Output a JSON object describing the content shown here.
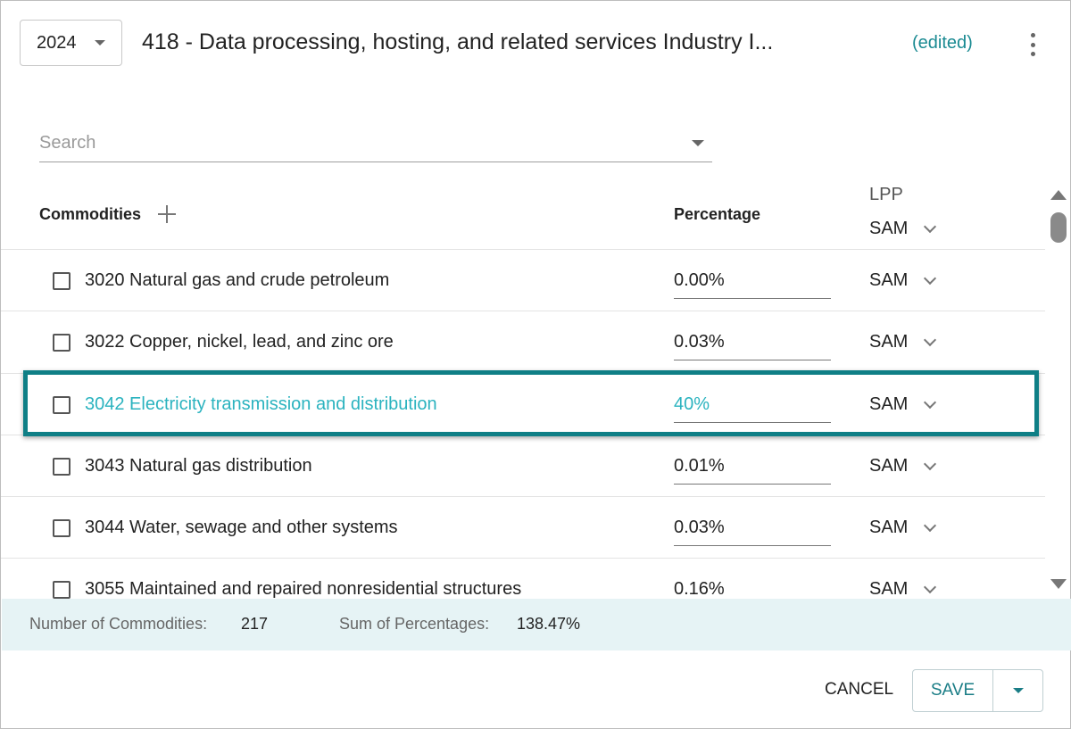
{
  "header": {
    "year": "2024",
    "title": "418 - Data processing, hosting, and related services Industry I...",
    "edited_label": "(edited)",
    "menu_icon": "more-vertical-icon"
  },
  "search": {
    "placeholder": "Search",
    "value": ""
  },
  "table": {
    "columns": {
      "commodities": "Commodities",
      "percentage": "Percentage",
      "lpp": "LPP",
      "lpp_all_value": "SAM"
    },
    "rows": [
      {
        "name": "3020 Natural gas and crude petroleum",
        "percentage": "0.00%",
        "lpp": "SAM",
        "highlighted": false
      },
      {
        "name": "3022 Copper, nickel, lead, and zinc ore",
        "percentage": "0.03%",
        "lpp": "SAM",
        "highlighted": false
      },
      {
        "name": "3042 Electricity transmission and distribution",
        "percentage": "40%",
        "lpp": "SAM",
        "highlighted": true
      },
      {
        "name": "3043 Natural gas distribution",
        "percentage": "0.01%",
        "lpp": "SAM",
        "highlighted": false
      },
      {
        "name": "3044 Water, sewage and other systems",
        "percentage": "0.03%",
        "lpp": "SAM",
        "highlighted": false
      },
      {
        "name": "3055 Maintained and repaired nonresidential structures",
        "percentage": "0.16%",
        "lpp": "SAM",
        "highlighted": false
      }
    ]
  },
  "summary": {
    "count_label": "Number of Commodities:",
    "count_value": "217",
    "sum_label": "Sum of Percentages:",
    "sum_value": "138.47%"
  },
  "actions": {
    "cancel_label": "CANCEL",
    "save_label": "SAVE"
  },
  "colors": {
    "accent": "#1a8a92",
    "highlight_border": "#0f7f86",
    "highlight_text": "#2bb3bf",
    "summary_bg": "#e6f3f5"
  }
}
